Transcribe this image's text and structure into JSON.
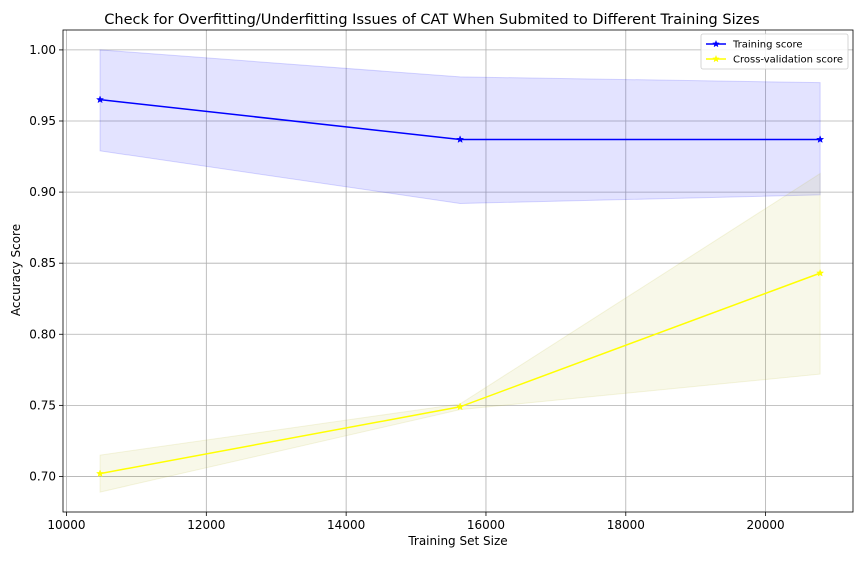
{
  "chart_data": {
    "type": "line",
    "title": "Check for Overfitting/Underfitting Issues of CAT When Submited to Different Training Sizes",
    "xlabel": "Training Set Size",
    "ylabel": "Accuracy Score",
    "xlim": [
      9950,
      21250
    ],
    "ylim": [
      0.675,
      1.014
    ],
    "x_ticks": [
      10000,
      12000,
      14000,
      16000,
      18000,
      20000
    ],
    "x_tick_labels": [
      "10000",
      "12000",
      "14000",
      "16000",
      "18000",
      "20000"
    ],
    "y_ticks": [
      0.7,
      0.75,
      0.8,
      0.85,
      0.9,
      0.95,
      1.0
    ],
    "y_tick_labels": [
      "0.70",
      "0.75",
      "0.80",
      "0.85",
      "0.90",
      "0.95",
      "1.00"
    ],
    "grid": true,
    "legend_position": "top-right",
    "x": [
      10480,
      15630,
      20780
    ],
    "series": [
      {
        "name": "Training score",
        "values": [
          0.965,
          0.937,
          0.937
        ],
        "band_upper": [
          1.0,
          0.981,
          0.977
        ],
        "band_lower": [
          0.929,
          0.892,
          0.898
        ],
        "color": "#0000ff",
        "band_color": "#0000ff",
        "marker": "star"
      },
      {
        "name": "Cross-validation score",
        "values": [
          0.702,
          0.749,
          0.843
        ],
        "band_upper": [
          0.715,
          0.751,
          0.913
        ],
        "band_lower": [
          0.689,
          0.747,
          0.772
        ],
        "color": "#ffff00",
        "band_color": "#bdbd33",
        "marker": "star"
      }
    ]
  }
}
